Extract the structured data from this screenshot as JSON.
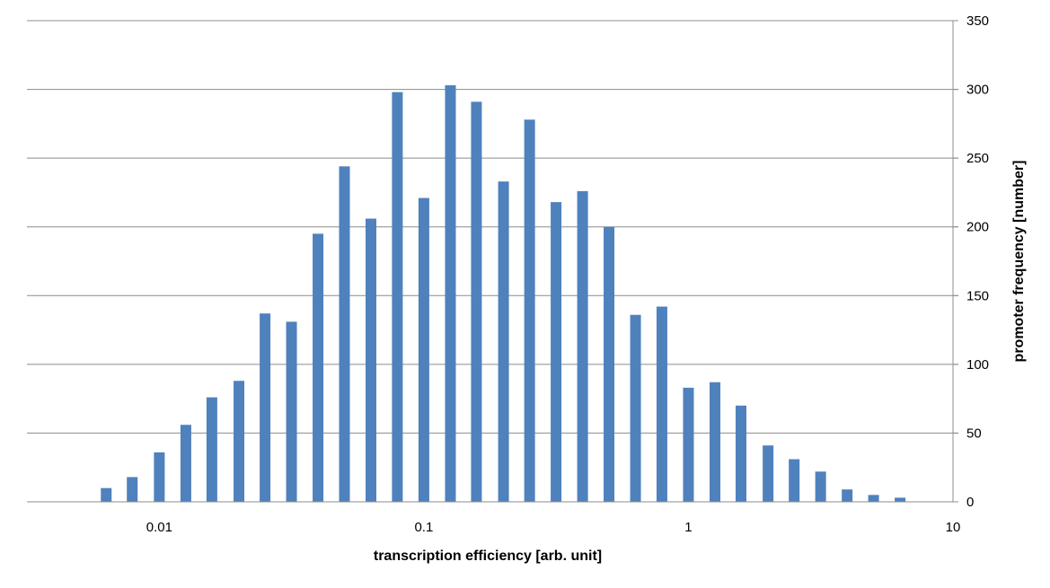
{
  "chart_data": {
    "type": "bar",
    "xlabel": "transcription efficiency [arb. unit]",
    "ylabel": "promoter frequency [number]",
    "x_scale": "log10",
    "xlim": [
      0.00316,
      10
    ],
    "ylim": [
      0,
      350
    ],
    "x_ticks": [
      0.01,
      0.1,
      1,
      10
    ],
    "x_tick_labels": [
      "0.01",
      "0.1",
      "1",
      "10"
    ],
    "y_ticks": [
      0,
      50,
      100,
      150,
      200,
      250,
      300,
      350
    ],
    "y_tick_labels": [
      "0",
      "50",
      "100",
      "150",
      "200",
      "250",
      "300",
      "350"
    ],
    "y_axis_side": "right",
    "grid": {
      "horizontal": true,
      "vertical": false
    },
    "bar_color": "#4F81BD",
    "grid_color": "#8C8C8C",
    "series": [
      {
        "x": [
          0.0063,
          0.0079,
          0.01,
          0.0126,
          0.0158,
          0.02,
          0.0251,
          0.0316,
          0.0398,
          0.0501,
          0.0631,
          0.0794,
          0.1,
          0.126,
          0.158,
          0.2,
          0.251,
          0.316,
          0.398,
          0.501,
          0.631,
          0.794,
          1,
          1.26,
          1.58,
          2,
          2.51,
          3.16,
          3.98,
          5.01,
          6.31
        ],
        "values": [
          10,
          18,
          36,
          56,
          76,
          88,
          137,
          131,
          195,
          244,
          206,
          298,
          221,
          303,
          291,
          233,
          278,
          218,
          226,
          200,
          136,
          142,
          83,
          87,
          70,
          41,
          31,
          22,
          9,
          5,
          3
        ]
      }
    ]
  }
}
